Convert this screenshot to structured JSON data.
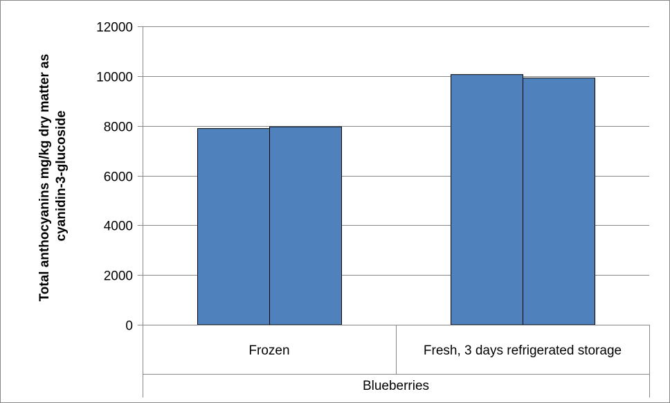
{
  "chart_data": {
    "type": "bar",
    "title": "",
    "ylabel_lines": [
      "Total anthocyanins mg/kg dry matter as",
      "cyanidin-3-glucoside"
    ],
    "group_label": "Blueberries",
    "categories": [
      "Frozen",
      "Fresh, 3 days refrigerated storage"
    ],
    "series": [
      {
        "values": [
          7890,
          10060
        ]
      },
      {
        "values": [
          7960,
          9920
        ]
      }
    ],
    "ylim": [
      0,
      12000
    ],
    "yticks": [
      0,
      2000,
      4000,
      6000,
      8000,
      10000,
      12000
    ],
    "grid": true,
    "legend": "none",
    "colors": {
      "bar_fill": "#4F81BD",
      "bar_stroke": "#000000",
      "grid": "#868686",
      "axis": "#868686"
    }
  }
}
